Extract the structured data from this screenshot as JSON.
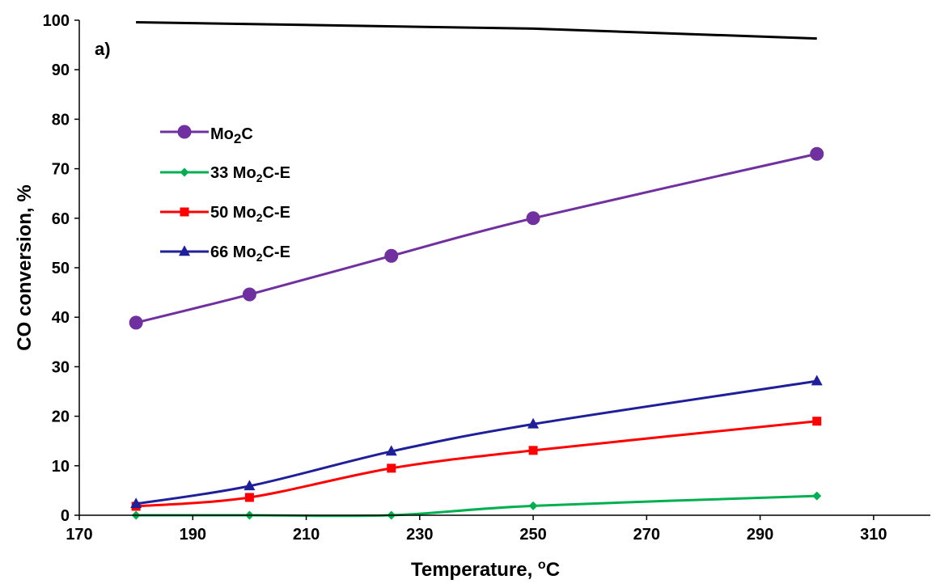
{
  "chart_data": {
    "type": "line",
    "panel_label": "a)",
    "xlabel_main": "Temperature, ",
    "xlabel_sup": "o",
    "xlabel_tail": "C",
    "ylabel": "CO conversion, %",
    "xlim": [
      170,
      320
    ],
    "ylim": [
      0,
      100
    ],
    "xticks": [
      170,
      190,
      210,
      230,
      250,
      270,
      290,
      310
    ],
    "yticks": [
      0,
      10,
      20,
      30,
      40,
      50,
      60,
      70,
      80,
      90,
      100
    ],
    "grid": false,
    "legend_position": "upper-left",
    "x": [
      180,
      200,
      225,
      250,
      300
    ],
    "series": [
      {
        "name_main": "Mo",
        "name_sub": "2",
        "name_tail": "C",
        "marker": "circle",
        "color": "#7030A0",
        "values": [
          38.9,
          44.6,
          52.4,
          60.0,
          73.0
        ]
      },
      {
        "name_main": "33 Mo",
        "name_sub": "2",
        "name_tail": "C-E",
        "marker": "diamond",
        "color": "#00B050",
        "values": [
          0.0,
          0.0,
          0.0,
          1.9,
          3.9
        ]
      },
      {
        "name_main": "50 Mo",
        "name_sub": "2",
        "name_tail": "C-E",
        "marker": "square",
        "color": "#FF0000",
        "values": [
          1.8,
          3.6,
          9.5,
          13.1,
          19.0
        ]
      },
      {
        "name_main": "66 Mo",
        "name_sub": "2",
        "name_tail": "C-E",
        "marker": "triangle",
        "color": "#1F1F99",
        "values": [
          2.3,
          5.9,
          12.9,
          18.4,
          27.1
        ]
      }
    ],
    "reference_line": {
      "color": "#000000",
      "x": [
        180,
        250,
        300
      ],
      "values": [
        99.6,
        98.3,
        96.3
      ]
    }
  }
}
